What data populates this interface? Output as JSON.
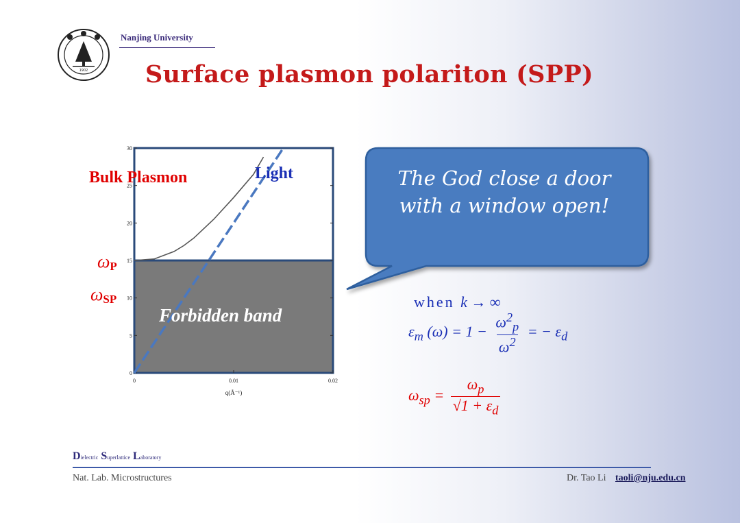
{
  "header": {
    "university": "Nanjing University",
    "title": "Surface plasmon polariton (SPP)",
    "seal_text": "NANJING UNIVERSITY 1902"
  },
  "chart_data": {
    "type": "line",
    "xlabel": "q(Å⁻¹)",
    "ylabel": "",
    "xlim": [
      0,
      0.02
    ],
    "ylim": [
      0,
      30
    ],
    "x_ticks": [
      "0",
      "0.01",
      "0.02"
    ],
    "y_ticks": [
      "0",
      "5",
      "10",
      "15",
      "20",
      "25",
      "30"
    ],
    "series": [
      {
        "name": "Bulk Plasmon",
        "x": [
          0,
          0.002,
          0.004,
          0.005,
          0.006,
          0.008,
          0.01,
          0.012,
          0.013
        ],
        "y": [
          15,
          15.2,
          16.2,
          17.0,
          18.0,
          20.5,
          23.4,
          26.5,
          28.8
        ]
      },
      {
        "name": "Light",
        "x": [
          0,
          0.005,
          0.01,
          0.015
        ],
        "y": [
          0,
          10,
          20,
          30
        ]
      }
    ],
    "bands": [
      {
        "label": "Forbidden band",
        "from": 0,
        "to": 15
      }
    ]
  },
  "annotations": {
    "bulk": "Bulk Plasmon",
    "light": "Light",
    "wp_symbol": "ω",
    "wp_sub": "P",
    "wsp_symbol": "ω",
    "wsp_sub": "SP",
    "forbidden": "Forbidden band"
  },
  "callout": {
    "line1": "The  God  close a door",
    "line2": "with a window open!"
  },
  "equations": {
    "when": "when",
    "limit": "k → ∞",
    "eq1_lhs": "ε",
    "eq1_lhs_sub": "m",
    "eq1_arg": "(ω) = 1 −",
    "eq1_num": "ω",
    "eq1_num_sup": "2",
    "eq1_num_sub": "p",
    "eq1_den": "ω",
    "eq1_den_sup": "2",
    "eq1_rhs": "= − ε",
    "eq1_rhs_sub": "d",
    "eq2_lhs": "ω",
    "eq2_lhs_sub": "sp",
    "eq2_eq": "=",
    "eq2_num": "ω",
    "eq2_num_sub": "p",
    "eq2_den": "√1 + ε",
    "eq2_den_sub": "d"
  },
  "footer": {
    "dsl_D": "D",
    "dsl_d": "ielectric",
    "dsl_S": "S",
    "dsl_s": "uperlattice",
    "dsl_L": "L",
    "dsl_l": "aboratory",
    "lab": "Nat. Lab. Microstructures",
    "author": "Dr. Tao Li",
    "email": "taoli@nju.edu.cn"
  },
  "colors": {
    "title": "#c41a1a",
    "accent_red": "#e00000",
    "accent_blue": "#1a2fb5",
    "callout_fill": "#4a7cc0",
    "callout_border": "#2e5f9e",
    "band_fill": "#7a7a7a"
  }
}
